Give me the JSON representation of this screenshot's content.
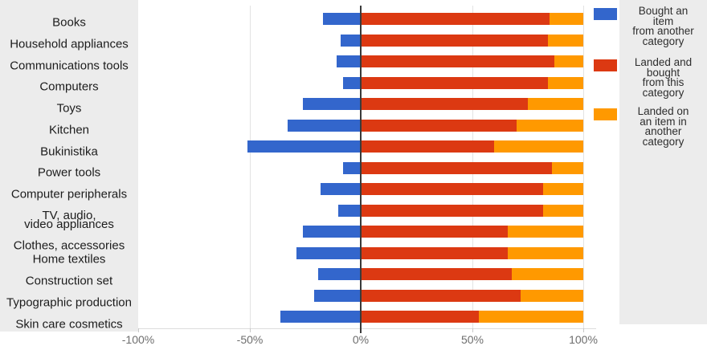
{
  "chart_data": {
    "type": "bar",
    "orientation": "horizontal-diverging-stacked",
    "title": "",
    "xlabel": "",
    "ylabel": "",
    "xlim": [
      -100,
      100
    ],
    "x_tick_labels": [
      "-100%",
      "-50%",
      "0%",
      "50%",
      "100%"
    ],
    "x_tick_values": [
      -100,
      -50,
      0,
      50,
      100
    ],
    "grid": true,
    "legend_position": "right",
    "categories": [
      "Books",
      "Household appliances",
      "Communications tools",
      "Computers",
      "Toys",
      "Kitchen",
      "Bukinistika",
      "Power tools",
      "Computer peripherals",
      "TV, audio, video appliances",
      "Clothes, accessories",
      "Home textiles",
      "Construction set",
      "Typographic production",
      "Skin care cosmetics"
    ],
    "series": [
      {
        "name": "Bought an item from another category",
        "color": "#3366cc",
        "values": [
          -17,
          -9,
          -11,
          -8,
          -26,
          -33,
          -51,
          -8,
          -18,
          -10,
          -26,
          -29,
          -19,
          -21,
          -36
        ]
      },
      {
        "name": "Landed and bought from this category",
        "color": "#dc3912",
        "values": [
          85,
          84,
          87,
          84,
          75,
          70,
          60,
          86,
          82,
          82,
          66,
          66,
          68,
          72,
          53
        ]
      },
      {
        "name": "Landed on an item in another category",
        "color": "#ff9900",
        "values": [
          15,
          16,
          13,
          16,
          25,
          30,
          40,
          14,
          18,
          18,
          34,
          34,
          32,
          28,
          47
        ]
      }
    ]
  },
  "category_labels": [
    [
      "Books"
    ],
    [
      "Household appliances"
    ],
    [
      "Communications tools"
    ],
    [
      "Computers"
    ],
    [
      "Toys"
    ],
    [
      "Kitchen"
    ],
    [
      "Bukinistika"
    ],
    [
      "Power tools"
    ],
    [
      "Computer peripherals"
    ],
    [
      "TV, audio,",
      "video appliances"
    ],
    [
      "Clothes, accessories"
    ],
    [
      "Home textiles"
    ],
    [
      "Construction set"
    ],
    [
      "Typographic production"
    ],
    [
      "Skin care cosmetics"
    ]
  ],
  "legend": {
    "items": [
      {
        "color": "#3366cc",
        "lines": [
          "Bought an",
          "item",
          "from another",
          "category"
        ]
      },
      {
        "color": "#dc3912",
        "lines": [
          "Landed and",
          "bought",
          "from this",
          "category"
        ]
      },
      {
        "color": "#ff9900",
        "lines": [
          "Landed on",
          "an item in",
          "another",
          "category"
        ]
      }
    ]
  },
  "axis": {
    "tick_labels": [
      "-100%",
      "-50%",
      "0%",
      "50%",
      "100%"
    ]
  },
  "colors": {
    "blue": "#3366cc",
    "red": "#dc3912",
    "orange": "#ff9900",
    "panel_gray": "#ececec",
    "axis_dark": "#3a3a3a",
    "gridline": "#e3e3e3",
    "tick_text": "#6e6e6e"
  }
}
